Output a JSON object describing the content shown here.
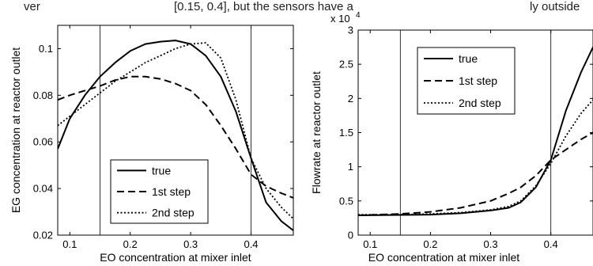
{
  "header_text": {
    "left": "ver",
    "middle": "[0.15, 0.4], but the sensors have a ",
    "right": "ly outside"
  },
  "chart_data": [
    {
      "type": "line",
      "xlabel": "EO concentration at mixer inlet",
      "ylabel": "EG concentration at reactor outlet",
      "xlim": [
        0.08,
        0.47
      ],
      "ylim": [
        0.02,
        0.11
      ],
      "xticks": [
        0.1,
        0.2,
        0.3,
        0.4
      ],
      "yticks": [
        0.02,
        0.04,
        0.06,
        0.08,
        0.1
      ],
      "xtick_labels": [
        "0.1",
        "0.2",
        "0.3",
        "0.4"
      ],
      "ytick_labels": [
        "0.02",
        "0.04",
        "0.06",
        "0.08",
        "0.1"
      ],
      "vlines": [
        0.15,
        0.4
      ],
      "legend": {
        "position": "bottom-right"
      },
      "series": [
        {
          "name": "true",
          "style": "solid",
          "x": [
            0.08,
            0.1,
            0.125,
            0.15,
            0.175,
            0.2,
            0.225,
            0.25,
            0.275,
            0.3,
            0.325,
            0.35,
            0.375,
            0.4,
            0.425,
            0.45,
            0.47
          ],
          "y": [
            0.057,
            0.07,
            0.08,
            0.088,
            0.094,
            0.099,
            0.102,
            0.103,
            0.1035,
            0.102,
            0.097,
            0.088,
            0.073,
            0.053,
            0.034,
            0.026,
            0.022
          ]
        },
        {
          "name": "1st step",
          "style": "dashed",
          "x": [
            0.08,
            0.1,
            0.125,
            0.15,
            0.175,
            0.2,
            0.225,
            0.25,
            0.275,
            0.3,
            0.325,
            0.35,
            0.375,
            0.4,
            0.425,
            0.45,
            0.47
          ],
          "y": [
            0.078,
            0.08,
            0.082,
            0.084,
            0.0865,
            0.088,
            0.088,
            0.087,
            0.085,
            0.082,
            0.076,
            0.067,
            0.057,
            0.046,
            0.041,
            0.038,
            0.036
          ]
        },
        {
          "name": "2nd step",
          "style": "dotted",
          "x": [
            0.08,
            0.1,
            0.125,
            0.15,
            0.175,
            0.2,
            0.225,
            0.25,
            0.275,
            0.3,
            0.325,
            0.35,
            0.375,
            0.4,
            0.425,
            0.45,
            0.47
          ],
          "y": [
            0.067,
            0.071,
            0.076,
            0.081,
            0.086,
            0.09,
            0.094,
            0.097,
            0.1,
            0.102,
            0.1025,
            0.096,
            0.078,
            0.053,
            0.04,
            0.032,
            0.027
          ]
        }
      ]
    },
    {
      "type": "line",
      "xlabel": "EO concentration at mixer inlet",
      "ylabel": "Flowrate at reactor outlet",
      "multiplier": "x 10",
      "multiplier_exp": "4",
      "xlim": [
        0.08,
        0.47
      ],
      "ylim": [
        0,
        3
      ],
      "xticks": [
        0.1,
        0.2,
        0.3,
        0.4
      ],
      "yticks": [
        0,
        0.5,
        1,
        1.5,
        2,
        2.5,
        3
      ],
      "xtick_labels": [
        "0.1",
        "0.2",
        "0.3",
        "0.4"
      ],
      "ytick_labels": [
        "0",
        "0.5",
        "1",
        "1.5",
        "2",
        "2.5",
        "3"
      ],
      "vlines": [
        0.15,
        0.4
      ],
      "legend": {
        "position": "top-left"
      },
      "series": [
        {
          "name": "true",
          "style": "solid",
          "x": [
            0.08,
            0.15,
            0.2,
            0.25,
            0.3,
            0.33,
            0.35,
            0.375,
            0.4,
            0.425,
            0.45,
            0.47
          ],
          "y": [
            0.29,
            0.295,
            0.3,
            0.32,
            0.36,
            0.4,
            0.48,
            0.7,
            1.1,
            1.82,
            2.38,
            2.75
          ]
        },
        {
          "name": "1st step",
          "style": "dashed",
          "x": [
            0.08,
            0.15,
            0.2,
            0.25,
            0.3,
            0.33,
            0.35,
            0.375,
            0.4,
            0.425,
            0.45,
            0.47
          ],
          "y": [
            0.29,
            0.31,
            0.34,
            0.4,
            0.5,
            0.61,
            0.7,
            0.87,
            1.1,
            1.25,
            1.4,
            1.5
          ]
        },
        {
          "name": "2nd step",
          "style": "dotted",
          "x": [
            0.08,
            0.15,
            0.2,
            0.25,
            0.3,
            0.33,
            0.35,
            0.375,
            0.4,
            0.425,
            0.45,
            0.47
          ],
          "y": [
            0.3,
            0.3,
            0.31,
            0.33,
            0.37,
            0.42,
            0.5,
            0.72,
            1.05,
            1.45,
            1.78,
            1.98
          ]
        }
      ]
    }
  ]
}
